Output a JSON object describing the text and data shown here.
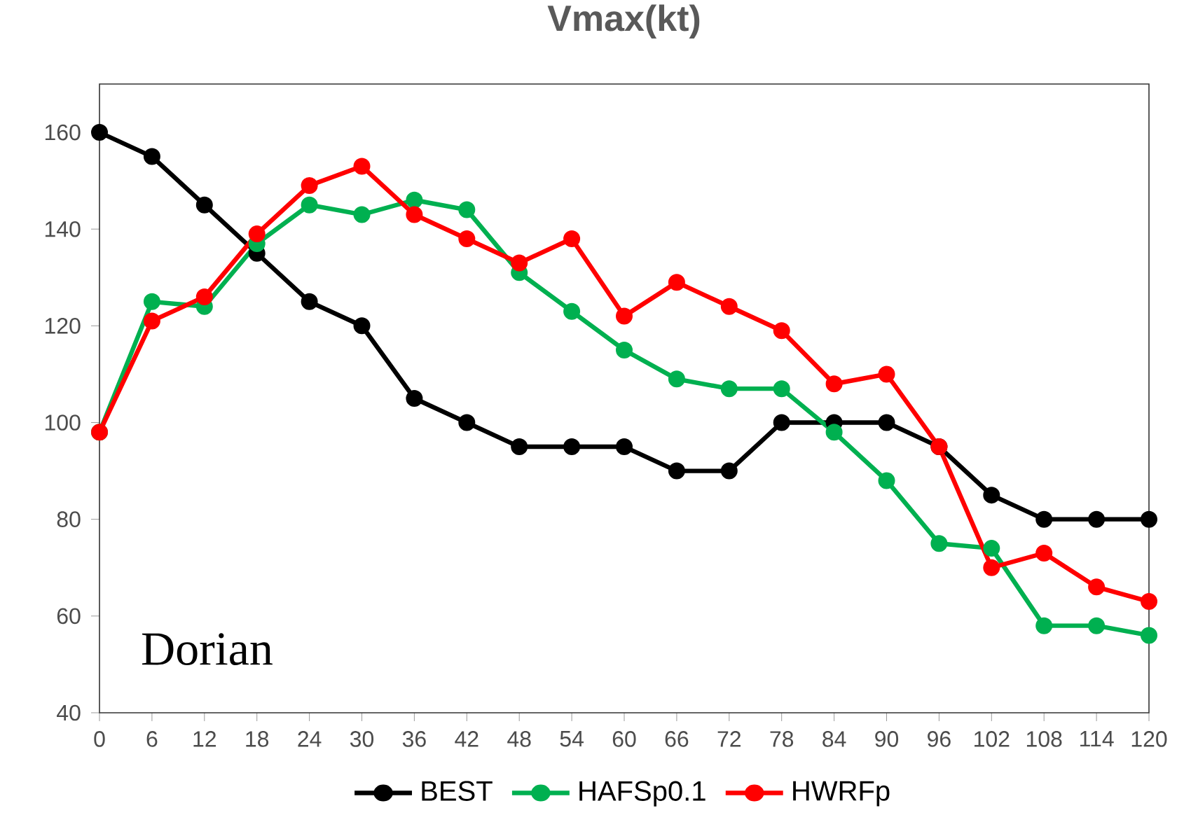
{
  "chart_data": {
    "type": "line",
    "title": "Vmax(kt)",
    "x": [
      0,
      6,
      12,
      18,
      24,
      30,
      36,
      42,
      48,
      54,
      60,
      66,
      72,
      78,
      84,
      90,
      96,
      102,
      108,
      114,
      120
    ],
    "series": [
      {
        "name": "BEST",
        "color": "#000000",
        "values": [
          160,
          155,
          145,
          135,
          125,
          120,
          105,
          100,
          95,
          95,
          95,
          90,
          90,
          100,
          100,
          100,
          95,
          85,
          80,
          80,
          80
        ]
      },
      {
        "name": "HAFSp0.1",
        "color": "#00b050",
        "values": [
          98,
          125,
          124,
          137,
          145,
          143,
          146,
          144,
          131,
          123,
          115,
          109,
          107,
          107,
          98,
          88,
          75,
          74,
          58,
          58,
          56
        ]
      },
      {
        "name": "HWRFp",
        "color": "#ff0000",
        "values": [
          98,
          121,
          126,
          139,
          149,
          153,
          143,
          138,
          133,
          138,
          122,
          129,
          124,
          119,
          108,
          110,
          95,
          70,
          73,
          66,
          63
        ]
      }
    ],
    "xlim": [
      0,
      120
    ],
    "ylim": [
      40,
      170
    ],
    "xticks": [
      0,
      6,
      12,
      18,
      24,
      30,
      36,
      42,
      48,
      54,
      60,
      66,
      72,
      78,
      84,
      90,
      96,
      102,
      108,
      114,
      120
    ],
    "yticks": [
      40,
      60,
      80,
      100,
      120,
      140,
      160
    ],
    "annotations": [
      "Dorian"
    ],
    "grid": false,
    "legend": "bottom",
    "marker": "circle",
    "line_style": "solid"
  }
}
